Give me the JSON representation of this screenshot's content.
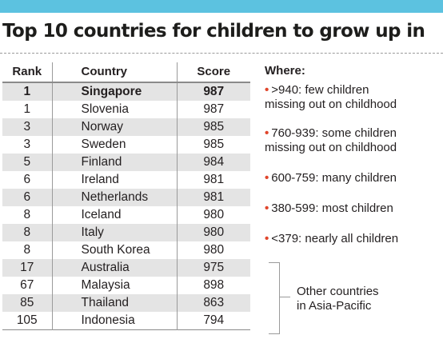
{
  "title": "Top 10 countries for children to grow up in",
  "chart_data": {
    "type": "table",
    "columns": [
      "Rank",
      "Country",
      "Score"
    ],
    "rows": [
      {
        "rank": "1",
        "country": "Singapore",
        "score": "987",
        "highlight": true
      },
      {
        "rank": "1",
        "country": "Slovenia",
        "score": "987"
      },
      {
        "rank": "3",
        "country": "Norway",
        "score": "985"
      },
      {
        "rank": "3",
        "country": "Sweden",
        "score": "985"
      },
      {
        "rank": "5",
        "country": "Finland",
        "score": "984"
      },
      {
        "rank": "6",
        "country": "Ireland",
        "score": "981"
      },
      {
        "rank": "6",
        "country": "Netherlands",
        "score": "981"
      },
      {
        "rank": "8",
        "country": "Iceland",
        "score": "980"
      },
      {
        "rank": "8",
        "country": "Italy",
        "score": "980"
      },
      {
        "rank": "8",
        "country": "South Korea",
        "score": "980"
      },
      {
        "rank": "17",
        "country": "Australia",
        "score": "975"
      },
      {
        "rank": "67",
        "country": "Malaysia",
        "score": "898"
      },
      {
        "rank": "85",
        "country": "Thailand",
        "score": "863"
      },
      {
        "rank": "105",
        "country": "Indonesia",
        "score": "794"
      }
    ],
    "legend": {
      "title": "Where:",
      "items": [
        {
          "line1": ">940: few children",
          "line2": "missing out on childhood"
        },
        {
          "line1": "760-939: some children",
          "line2": "missing out on childhood"
        },
        {
          "line1": "600-759: many children",
          "line2": ""
        },
        {
          "line1": "380-599: most children",
          "line2": ""
        },
        {
          "line1": "<379: nearly all children",
          "line2": ""
        }
      ]
    },
    "group_note": {
      "line1": "Other countries",
      "line2": "in Asia-Pacific"
    }
  },
  "colors": {
    "accent_bar": "#5cc2e0",
    "bullet": "#e0452b",
    "stripe": "#e4e4e4"
  }
}
